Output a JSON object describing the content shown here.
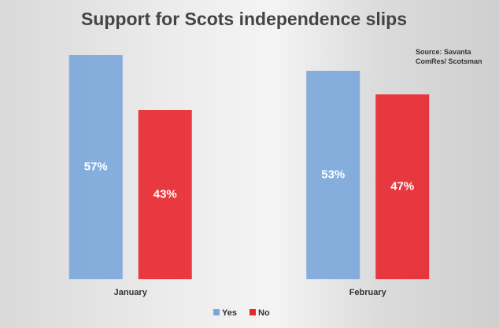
{
  "chart_data": {
    "type": "bar",
    "title": "Support for Scots independence slips",
    "source": "Source: Savanta ComRes/ Scotsman",
    "categories": [
      "January",
      "February"
    ],
    "series": [
      {
        "name": "Yes",
        "color": "#7aa7db",
        "values": [
          57,
          53
        ],
        "value_labels": [
          "57%",
          "53%"
        ]
      },
      {
        "name": "No",
        "color": "#e8262d",
        "values": [
          43,
          47
        ],
        "value_labels": [
          "43%",
          "47%"
        ]
      }
    ],
    "ylim": [
      0,
      60
    ]
  }
}
